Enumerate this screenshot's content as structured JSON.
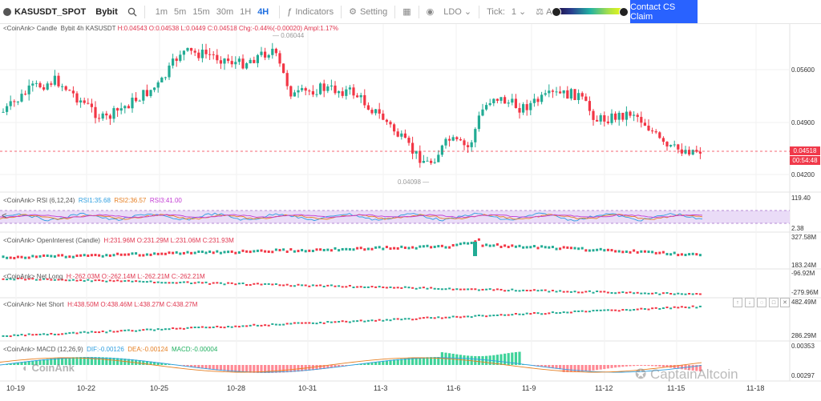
{
  "toolbar": {
    "symbol": "KASUSDT_SPOT",
    "exchange": "Bybit",
    "timeframes": [
      "1m",
      "5m",
      "15m",
      "30m",
      "1H",
      "4H"
    ],
    "active_timeframe": "4H",
    "indicators": "Indicators",
    "setting": "Setting",
    "ldo": "LDO",
    "tick_label": "Tick:",
    "tick_value": "1",
    "ask_bid": "Ask-Bid Cluster",
    "contact": "Contact CS Claim"
  },
  "panes": {
    "main": {
      "title": "<CoinAnk> Candle",
      "info_prefix": "Bybit 4h KASUSDT",
      "h": "H:0.04543",
      "o": "O:0.04538",
      "l": "L:0.0449",
      "c": "C:0.04518",
      "chg": "Chg:-0.44%(-0.00020)",
      "ampl": "Ampl:1.17%",
      "high_marker": "0.06044",
      "low_marker": "0.04098",
      "price_ticks": [
        "0.05600",
        "0.04900",
        "0.04200"
      ],
      "last_price": "0.04518",
      "countdown": "00:54:48"
    },
    "rsi": {
      "title": "<CoinAnk> RSI",
      "params": "(6,12,24)",
      "rsi1": "RSI1:35.68",
      "rsi2": "RSI2:36.57",
      "rsi3": "RSI3:41.00",
      "ticks": [
        "119.40",
        "2.38"
      ]
    },
    "oi": {
      "title": "<CoinAnk> OpenInterest (Candle)",
      "values": "H:231.96M O:231.29M L:231.06M C:231.93M",
      "ticks": [
        "327.58M",
        "183.24M"
      ]
    },
    "net_long": {
      "title": "<CoinAnk> Net Long",
      "values": "H:-262.03M O:-262.14M L:-262.21M C:-262.21M",
      "ticks": [
        "-96.92M",
        "-279.96M"
      ]
    },
    "net_short": {
      "title": "<CoinAnk> Net Short",
      "values": "H:438.50M O:438.46M L:438.27M C:438.27M",
      "ticks": [
        "482.49M",
        "286.29M"
      ]
    },
    "macd": {
      "title": "<CoinAnk> MACD",
      "params": "(12,26,9)",
      "dif": "DIF:-0.00126",
      "dea": "DEA:-0.00124",
      "macd": "MACD:-0.00004",
      "ticks": [
        "0.00353",
        "0.00297"
      ]
    }
  },
  "x_axis": [
    "10-19",
    "10-22",
    "10-25",
    "10-28",
    "10-31",
    "11-3",
    "11-6",
    "11-9",
    "11-12",
    "11-15",
    "11-18"
  ],
  "watermarks": {
    "left": "CoinAnk",
    "right": "CaptainAltcoin"
  },
  "colors": {
    "up": "#22ab94",
    "down": "#f23645",
    "accent": "#2962ff"
  },
  "chart_data": {
    "type": "candlestick",
    "symbol": "KASUSDT",
    "timeframe": "4h",
    "last_close": 0.04518,
    "marked_high": 0.06044,
    "marked_low": 0.04098,
    "ylim_approx": [
      0.0405,
      0.0615
    ]
  }
}
